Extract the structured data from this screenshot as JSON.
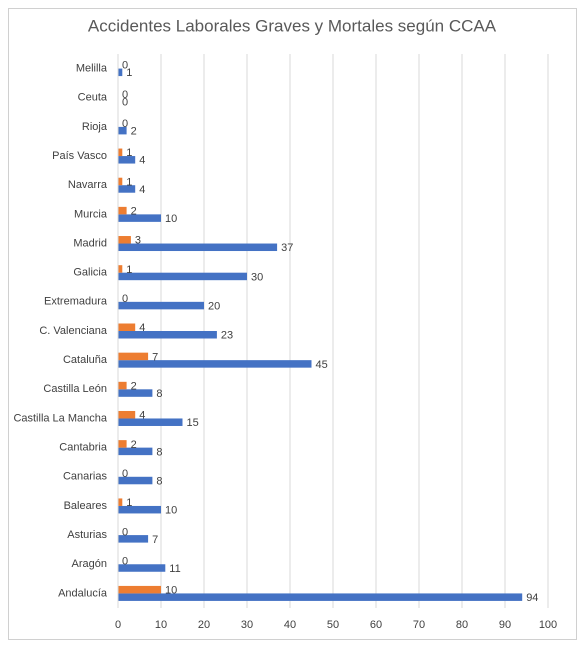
{
  "chart_data": {
    "type": "hbar",
    "title": "Accidentes Laborales Graves y Mortales según CCAA",
    "categories": [
      "Andalucía",
      "Aragón",
      "Asturias",
      "Baleares",
      "Canarias",
      "Cantabria",
      "Castilla La Mancha",
      "Castilla León",
      "Cataluña",
      "C. Valenciana",
      "Extremadura",
      "Galicia",
      "Madrid",
      "Murcia",
      "Navarra",
      "País Vasco",
      "Rioja",
      "Ceuta",
      "Melilla"
    ],
    "series": [
      {
        "color": "#4472c4",
        "values": [
          94,
          11,
          7,
          10,
          8,
          8,
          15,
          8,
          45,
          23,
          20,
          30,
          37,
          10,
          4,
          4,
          2,
          0,
          1
        ]
      },
      {
        "color": "#ed7d31",
        "values": [
          10,
          0,
          0,
          1,
          0,
          2,
          4,
          2,
          7,
          4,
          0,
          1,
          3,
          2,
          1,
          1,
          0,
          0,
          0
        ]
      }
    ],
    "xlim": [
      0,
      100
    ],
    "xticks": [
      0,
      10,
      20,
      30,
      40,
      50,
      60,
      70,
      80,
      90,
      100
    ],
    "grid": true
  }
}
